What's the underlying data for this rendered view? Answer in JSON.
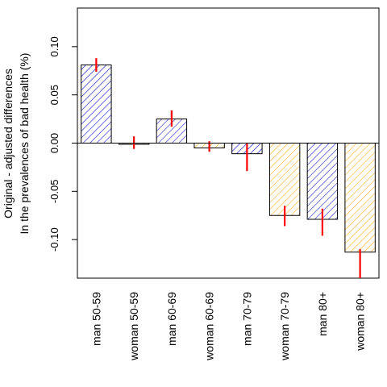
{
  "chart_data": {
    "type": "bar",
    "title": "",
    "xlabel": "",
    "ylabel_lines": [
      "Original - adjusted differences",
      "In the prevalences of bad health (%)"
    ],
    "ylim": [
      -0.14,
      0.14
    ],
    "yticks": [
      -0.1,
      -0.05,
      0.0,
      0.05,
      0.1
    ],
    "ytick_labels": [
      "-0.10",
      "-0.05",
      "0.00",
      "0.05",
      "0.10"
    ],
    "grid": false,
    "legend": "none",
    "bars": [
      {
        "label": "man 50-59",
        "value": 0.081,
        "ci": [
          0.074,
          0.088
        ],
        "fill": "blue"
      },
      {
        "label": "woman 50-59",
        "value": -0.001,
        "ci": [
          -0.006,
          0.007
        ],
        "fill": "orange"
      },
      {
        "label": "man 60-69",
        "value": 0.025,
        "ci": [
          0.017,
          0.034
        ],
        "fill": "blue"
      },
      {
        "label": "woman 60-69",
        "value": -0.005,
        "ci": [
          -0.009,
          0.002
        ],
        "fill": "orange"
      },
      {
        "label": "man 70-79",
        "value": -0.011,
        "ci": [
          -0.029,
          0.0
        ],
        "fill": "blue"
      },
      {
        "label": "woman 70-79",
        "value": -0.075,
        "ci": [
          -0.086,
          -0.065
        ],
        "fill": "orange"
      },
      {
        "label": "man 80+",
        "value": -0.079,
        "ci": [
          -0.096,
          -0.068
        ],
        "fill": "blue"
      },
      {
        "label": "woman 80+",
        "value": -0.113,
        "ci": [
          -0.14,
          -0.11
        ],
        "fill": "orange"
      }
    ],
    "colors": {
      "blue": "#0000cc",
      "orange": "#ffa500",
      "error": "#ff0000",
      "axis": "#000000"
    }
  }
}
